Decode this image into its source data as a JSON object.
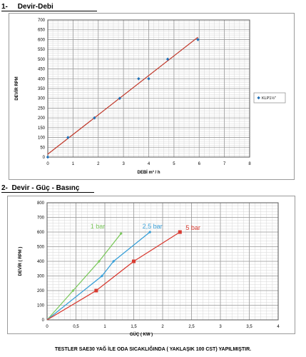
{
  "section1_title": "1-     Devir-Debi",
  "section2_title": "2-  Devir - Güç - Basınç",
  "footer": "TESTLER SAE30 YAĞ İLE ODA SICAKLIĞINDA ( YAKLAŞIK 100 CST) YAPILMIŞTIR.",
  "chart_data": [
    {
      "type": "scatter",
      "xlabel": "DEBİ m³ / h",
      "ylabel": "DEVİR RPM",
      "xlim": [
        0,
        8
      ],
      "ylim": [
        0,
        700
      ],
      "x_ticks": [
        0,
        1,
        2,
        3,
        4,
        5,
        6,
        7,
        8
      ],
      "y_ticks": [
        0,
        50,
        100,
        150,
        200,
        250,
        300,
        350,
        400,
        450,
        500,
        550,
        600,
        650,
        700
      ],
      "grid": true,
      "legend_position": "right",
      "series": [
        {
          "name": "KLP1½\"",
          "color": "#1f6fb5",
          "points": [
            [
              0,
              0
            ],
            [
              0.8,
              100
            ],
            [
              1.85,
              200
            ],
            [
              2.85,
              300
            ],
            [
              3.6,
              400
            ],
            [
              4,
              400
            ],
            [
              4.75,
              500
            ],
            [
              5.95,
              600
            ]
          ],
          "trendline": [
            [
              0,
              15
            ],
            [
              5.95,
              612
            ]
          ],
          "trend_color": "#c0392b"
        }
      ]
    },
    {
      "type": "line",
      "xlabel": "GÜÇ ( KW )",
      "ylabel": "DEVİR ( RPM )",
      "xlim": [
        0,
        4
      ],
      "ylim": [
        0,
        800
      ],
      "x_ticks": [
        "0",
        "0,5",
        "1",
        "1,5",
        "2",
        "2,5",
        "3",
        "3,5",
        "4"
      ],
      "x_tick_values": [
        0,
        0.5,
        1,
        1.5,
        2,
        2.5,
        3,
        3.5,
        4
      ],
      "y_ticks": [
        0,
        100,
        200,
        300,
        400,
        500,
        600,
        700,
        800
      ],
      "grid": true,
      "series": [
        {
          "name": "1 bar",
          "color": "#7dc95e",
          "points": [
            [
              0,
              0
            ],
            [
              0.45,
              200
            ],
            [
              0.9,
              400
            ],
            [
              1.28,
              590
            ]
          ],
          "label_pos": [
            0.75,
            625
          ]
        },
        {
          "name": "2,5 bar",
          "color": "#3aa0d8",
          "points": [
            [
              0,
              0
            ],
            [
              0.95,
              300
            ],
            [
              1.15,
              400
            ],
            [
              1.78,
              600
            ]
          ],
          "label_pos": [
            1.65,
            625
          ]
        },
        {
          "name": "5 bar",
          "color": "#d83a30",
          "points": [
            [
              0,
              0
            ],
            [
              0.85,
              200
            ],
            [
              1.5,
              400
            ],
            [
              2.3,
              600
            ]
          ],
          "label_pos": [
            2.4,
            615
          ]
        }
      ]
    }
  ]
}
